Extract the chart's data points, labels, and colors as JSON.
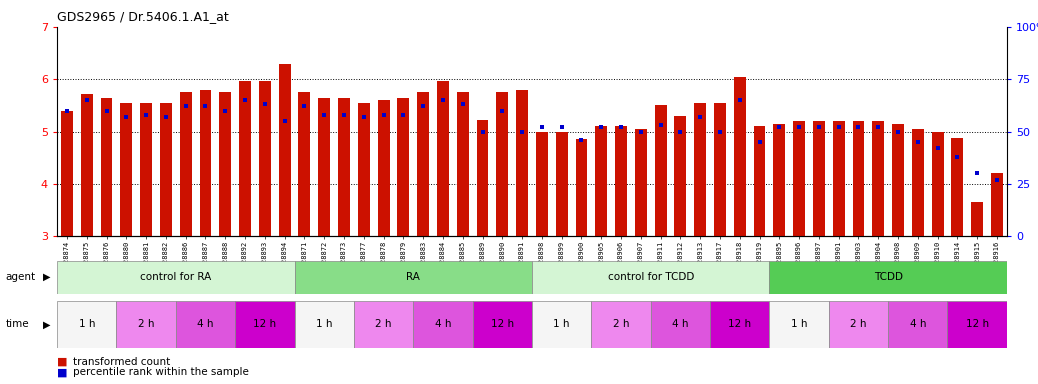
{
  "title": "GDS2965 / Dr.5406.1.A1_at",
  "samples": [
    "GSM228874",
    "GSM228875",
    "GSM228876",
    "GSM228880",
    "GSM228881",
    "GSM228882",
    "GSM228886",
    "GSM228887",
    "GSM228888",
    "GSM228892",
    "GSM228893",
    "GSM228894",
    "GSM228871",
    "GSM228872",
    "GSM228873",
    "GSM228877",
    "GSM228878",
    "GSM228879",
    "GSM228883",
    "GSM228884",
    "GSM228885",
    "GSM228889",
    "GSM228890",
    "GSM228891",
    "GSM228898",
    "GSM228899",
    "GSM228900",
    "GSM228905",
    "GSM228906",
    "GSM228907",
    "GSM228911",
    "GSM228912",
    "GSM228913",
    "GSM228917",
    "GSM228918",
    "GSM228919",
    "GSM228895",
    "GSM228896",
    "GSM228897",
    "GSM228901",
    "GSM228903",
    "GSM228904",
    "GSM228908",
    "GSM228909",
    "GSM228910",
    "GSM228914",
    "GSM228915",
    "GSM228916"
  ],
  "red_values": [
    5.4,
    5.72,
    5.65,
    5.55,
    5.55,
    5.55,
    5.76,
    5.8,
    5.75,
    5.97,
    5.97,
    6.3,
    5.76,
    5.65,
    5.65,
    5.55,
    5.6,
    5.65,
    5.76,
    5.97,
    5.76,
    5.22,
    5.76,
    5.8,
    5.0,
    5.0,
    4.85,
    5.1,
    5.1,
    5.05,
    5.5,
    5.3,
    5.55,
    5.55,
    6.05,
    5.1,
    5.15,
    5.2,
    5.2,
    5.2,
    5.2,
    5.2,
    5.15,
    5.05,
    5.0,
    4.88,
    3.65,
    4.2
  ],
  "blue_values": [
    60,
    65,
    60,
    57,
    58,
    57,
    62,
    62,
    60,
    65,
    63,
    55,
    62,
    58,
    58,
    57,
    58,
    58,
    62,
    65,
    63,
    50,
    60,
    50,
    52,
    52,
    46,
    52,
    52,
    50,
    53,
    50,
    57,
    50,
    65,
    45,
    52,
    52,
    52,
    52,
    52,
    52,
    50,
    45,
    42,
    38,
    30,
    27
  ],
  "agent_groups": [
    {
      "label": "control for RA",
      "start": 0,
      "end": 11,
      "color": "#d4f5d4"
    },
    {
      "label": "RA",
      "start": 12,
      "end": 23,
      "color": "#88dd88"
    },
    {
      "label": "control for TCDD",
      "start": 24,
      "end": 35,
      "color": "#d4f5d4"
    },
    {
      "label": "TCDD",
      "start": 36,
      "end": 47,
      "color": "#55cc55"
    }
  ],
  "time_groups": [
    {
      "label": "1 h",
      "start": 0,
      "end": 2,
      "color": "#f5f5f5"
    },
    {
      "label": "2 h",
      "start": 3,
      "end": 5,
      "color": "#ee88ee"
    },
    {
      "label": "4 h",
      "start": 6,
      "end": 8,
      "color": "#dd55dd"
    },
    {
      "label": "12 h",
      "start": 9,
      "end": 11,
      "color": "#cc00cc"
    },
    {
      "label": "1 h",
      "start": 12,
      "end": 14,
      "color": "#f5f5f5"
    },
    {
      "label": "2 h",
      "start": 15,
      "end": 17,
      "color": "#ee88ee"
    },
    {
      "label": "4 h",
      "start": 18,
      "end": 20,
      "color": "#dd55dd"
    },
    {
      "label": "12 h",
      "start": 21,
      "end": 23,
      "color": "#cc00cc"
    },
    {
      "label": "1 h",
      "start": 24,
      "end": 26,
      "color": "#f5f5f5"
    },
    {
      "label": "2 h",
      "start": 27,
      "end": 29,
      "color": "#ee88ee"
    },
    {
      "label": "4 h",
      "start": 30,
      "end": 32,
      "color": "#dd55dd"
    },
    {
      "label": "12 h",
      "start": 33,
      "end": 35,
      "color": "#cc00cc"
    },
    {
      "label": "1 h",
      "start": 36,
      "end": 38,
      "color": "#f5f5f5"
    },
    {
      "label": "2 h",
      "start": 39,
      "end": 41,
      "color": "#ee88ee"
    },
    {
      "label": "4 h",
      "start": 42,
      "end": 44,
      "color": "#dd55dd"
    },
    {
      "label": "12 h",
      "start": 45,
      "end": 47,
      "color": "#cc00cc"
    }
  ],
  "ylim_left": [
    3,
    7
  ],
  "ylim_right": [
    0,
    100
  ],
  "yticks_left": [
    3,
    4,
    5,
    6,
    7
  ],
  "yticks_right": [
    0,
    25,
    50,
    75,
    100
  ],
  "bar_color": "#cc1100",
  "blue_color": "#0000cc",
  "bar_width": 0.6,
  "blue_marker_size": 3,
  "legend_items": [
    "transformed count",
    "percentile rank within the sample"
  ]
}
